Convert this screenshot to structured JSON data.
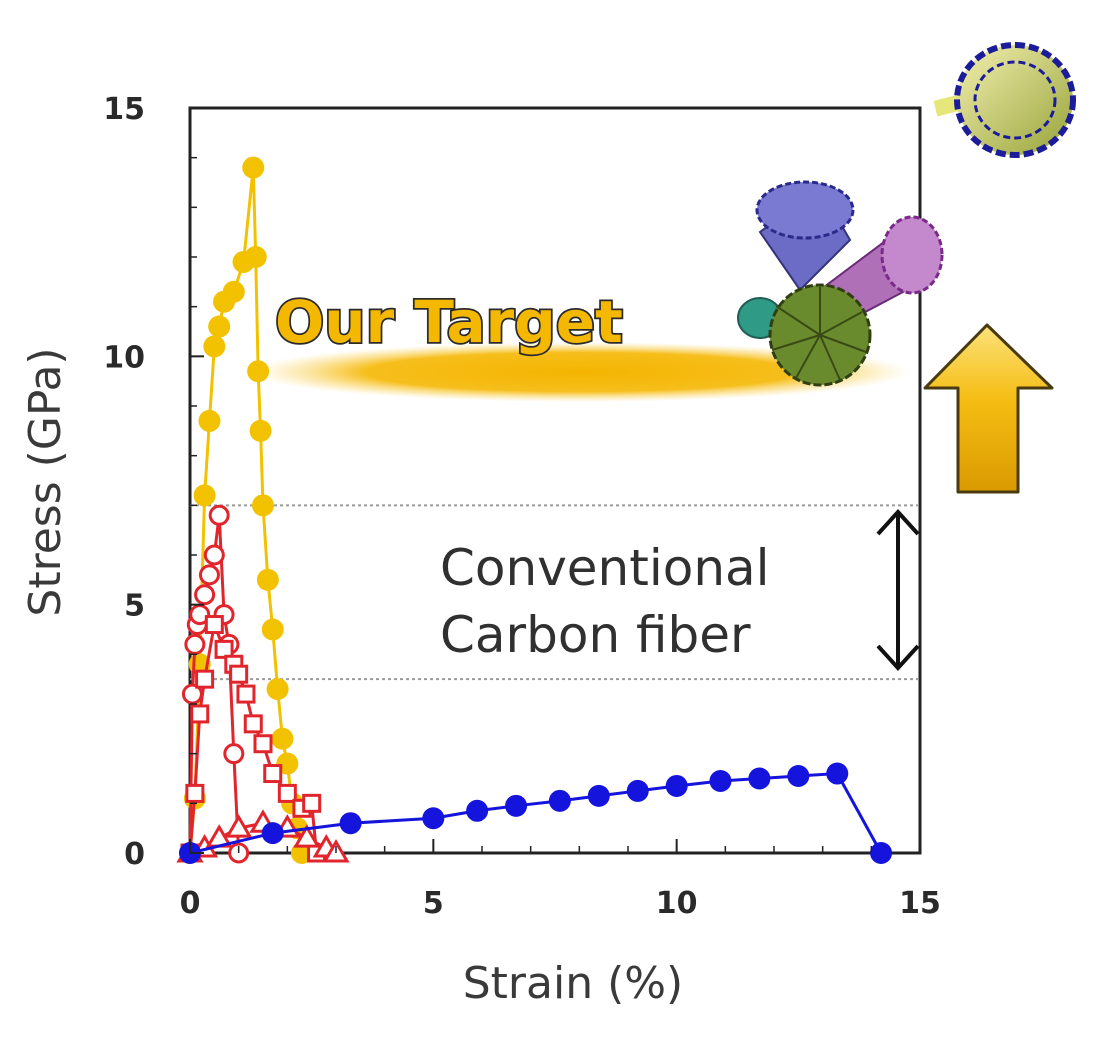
{
  "chart_data": {
    "type": "line",
    "xlabel": "Strain (%)",
    "ylabel": "Stress (GPa)",
    "xlim": [
      0,
      15
    ],
    "ylim": [
      0,
      15
    ],
    "x_ticks": [
      "0",
      "5",
      "10",
      "15"
    ],
    "y_ticks": [
      "0",
      "5",
      "10",
      "15"
    ],
    "grid": false,
    "reference_lines": [
      3.5,
      7.0
    ],
    "series": [
      {
        "color": "#f2c200",
        "marker": "filled-circle",
        "x": [
          0.0,
          0.1,
          0.2,
          0.3,
          0.4,
          0.5,
          0.6,
          0.7,
          0.9,
          1.1,
          1.3,
          1.35,
          1.4,
          1.45,
          1.5,
          1.6,
          1.7,
          1.8,
          1.9,
          2.0,
          2.1,
          2.2,
          2.3
        ],
        "y": [
          0.0,
          1.1,
          3.8,
          7.2,
          8.7,
          10.2,
          10.6,
          11.1,
          11.3,
          11.9,
          13.8,
          12.0,
          9.7,
          8.5,
          7.0,
          5.5,
          4.5,
          3.3,
          2.3,
          1.8,
          1.0,
          0.5,
          0.0
        ]
      },
      {
        "color": "#e0262c",
        "marker": "open-circle",
        "x": [
          0.0,
          0.05,
          0.1,
          0.15,
          0.2,
          0.3,
          0.4,
          0.5,
          0.6,
          0.7,
          0.8,
          0.9,
          1.0
        ],
        "y": [
          0.0,
          3.2,
          4.2,
          4.6,
          4.8,
          5.2,
          5.6,
          6.0,
          6.8,
          4.8,
          4.2,
          2.0,
          0.0
        ]
      },
      {
        "color": "#e0262c",
        "marker": "open-square",
        "x": [
          0.0,
          0.1,
          0.2,
          0.3,
          0.5,
          0.7,
          0.9,
          1.0,
          1.15,
          1.3,
          1.5,
          1.7,
          2.0,
          2.3,
          2.5,
          2.6
        ],
        "y": [
          0.0,
          1.2,
          2.8,
          3.5,
          4.6,
          4.1,
          3.8,
          3.6,
          3.2,
          2.6,
          2.2,
          1.6,
          1.2,
          0.9,
          1.0,
          0.0
        ]
      },
      {
        "color": "#e0262c",
        "marker": "open-triangle",
        "x": [
          0.0,
          0.3,
          0.6,
          1.0,
          1.5,
          2.0,
          2.4,
          2.8,
          3.0
        ],
        "y": [
          0.0,
          0.1,
          0.3,
          0.5,
          0.6,
          0.5,
          0.3,
          0.1,
          0.0
        ]
      },
      {
        "color": "#1414dc",
        "marker": "filled-circle",
        "x": [
          0.0,
          1.7,
          3.3,
          5.0,
          5.9,
          6.7,
          7.6,
          8.4,
          9.2,
          10.0,
          10.9,
          11.7,
          12.5,
          13.3,
          14.2
        ],
        "y": [
          0.0,
          0.4,
          0.6,
          0.7,
          0.85,
          0.95,
          1.05,
          1.15,
          1.25,
          1.35,
          1.45,
          1.5,
          1.55,
          1.6,
          0.0
        ]
      }
    ],
    "annotations": {
      "target": "Our Target",
      "conventional_line1": "Conventional",
      "conventional_line2": "Carbon fiber"
    }
  }
}
